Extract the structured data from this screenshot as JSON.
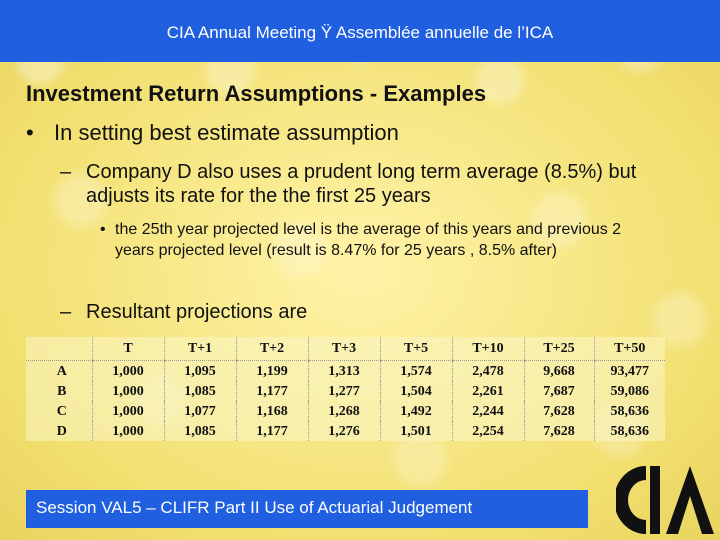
{
  "header": {
    "title": "CIA Annual Meeting Ÿ Assemblée annuelle de l’ICA"
  },
  "slide": {
    "title": "Investment Return Assumptions - Examples",
    "bullet1": "In setting best estimate assumption",
    "bullet2": "Company D also uses a prudent long term average (8.5%) but adjusts its rate for the the first 25 years",
    "bullet3": "the 25th year projected level is the average of this years and previous 2 years projected level (result is 8.47% for 25 years , 8.5% after)",
    "bullet4": "Resultant projections are",
    "bullet_glyph": "•",
    "dash_glyph": "–"
  },
  "table": {
    "headers": [
      "",
      "T",
      "T+1",
      "T+2",
      "T+3",
      "T+5",
      "T+10",
      "T+25",
      "T+50"
    ],
    "rows": [
      [
        "A",
        "1,000",
        "1,095",
        "1,199",
        "1,313",
        "1,574",
        "2,478",
        "9,668",
        "93,477"
      ],
      [
        "B",
        "1,000",
        "1,085",
        "1,177",
        "1,277",
        "1,504",
        "2,261",
        "7,687",
        "59,086"
      ],
      [
        "C",
        "1,000",
        "1,077",
        "1,168",
        "1,268",
        "1,492",
        "2,244",
        "7,628",
        "58,636"
      ],
      [
        "D",
        "1,000",
        "1,085",
        "1,177",
        "1,276",
        "1,501",
        "2,254",
        "7,628",
        "58,636"
      ]
    ]
  },
  "footer": {
    "text": "Session VAL5 – CLIFR Part II Use of Actuarial Judgement"
  },
  "logo": {
    "icon": "cia-logo-icon",
    "color": "#111111"
  },
  "colors": {
    "banner": "#1f5fe0",
    "background": "#f6e98a"
  }
}
